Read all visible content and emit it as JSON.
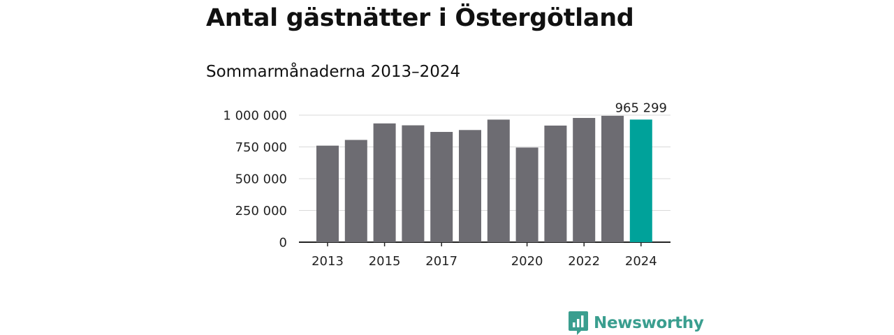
{
  "title": "Antal gästnätter i Östergötland",
  "subtitle": "Sommarmånaderna 2013–2024",
  "brand": {
    "name": "Newsworthy",
    "color": "#3a9e8f",
    "icon": "newsworthy-logo-icon"
  },
  "colors": {
    "bar": "#6d6c72",
    "highlight": "#00a29a",
    "grid": "#d9d9d9",
    "axis": "#222222"
  },
  "chart_data": {
    "type": "bar",
    "categories": [
      "2013",
      "2014",
      "2015",
      "2016",
      "2017",
      "2018",
      "2019",
      "2020",
      "2021",
      "2022",
      "2023",
      "2024"
    ],
    "values": [
      760000,
      805000,
      935000,
      920000,
      868000,
      883000,
      965000,
      745000,
      918000,
      978000,
      995000,
      965299
    ],
    "highlight_index": 11,
    "annotation": "965 299",
    "x_tick_labels": [
      "2013",
      "",
      "2015",
      "",
      "2017",
      "",
      "",
      "2020",
      "",
      "2022",
      "",
      "2024"
    ],
    "y_ticks": [
      0,
      250000,
      500000,
      750000,
      1000000
    ],
    "y_tick_labels": [
      "0",
      "250 000",
      "500 000",
      "750 000",
      "1 000 000"
    ],
    "ylim": [
      0,
      1000000
    ],
    "grid": true,
    "legend": "none"
  }
}
